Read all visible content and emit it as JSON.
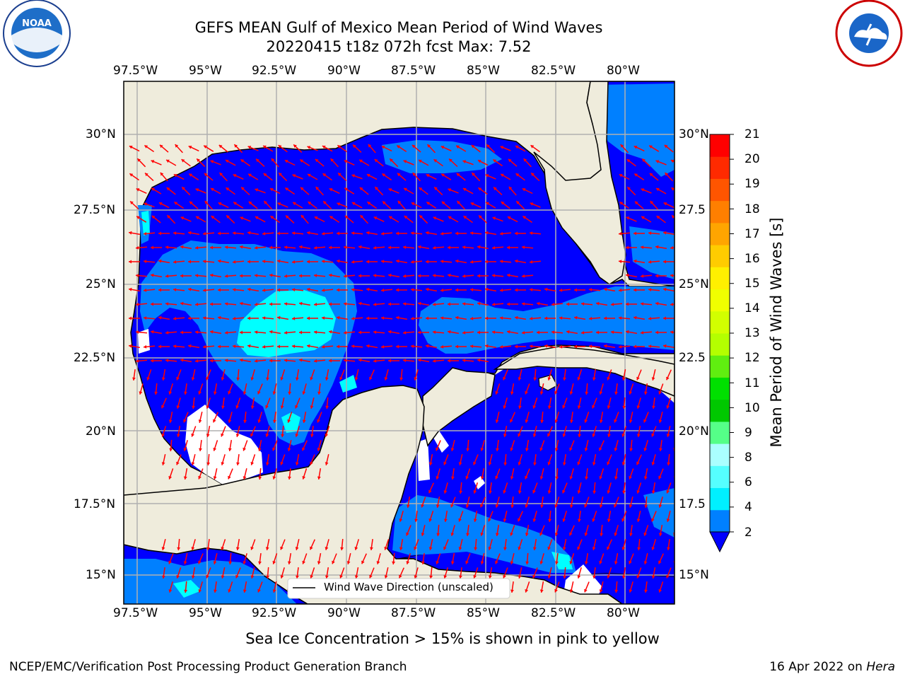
{
  "title": {
    "line1": "GEFS MEAN Gulf of Mexico Mean Period of Wind Waves",
    "line2": "20220415 t18z 072h fcst   Max: 7.52"
  },
  "axes": {
    "lon_labels": [
      "97.5°W",
      "95°W",
      "92.5°W",
      "90°W",
      "87.5°W",
      "85°W",
      "82.5°W",
      "80°W"
    ],
    "lat_labels_left": [
      "30°N",
      "27.5°N",
      "25°N",
      "22.5°N",
      "20°N",
      "17.5°N",
      "15°N"
    ],
    "lat_labels_right": [
      "30°N",
      "27.5",
      "25°N",
      "22.5",
      "20°N",
      "17.5",
      "15°N"
    ]
  },
  "colorbar": {
    "title": "Mean Period of Wind Waves [s]",
    "tick_labels": [
      "21",
      "20",
      "19",
      "18",
      "17",
      "16",
      "15",
      "14",
      "13",
      "12",
      "11",
      "10",
      "9",
      "8",
      "6",
      "4",
      "2"
    ],
    "colors": [
      "#ff0000",
      "#ff2a00",
      "#ff5500",
      "#ff7f00",
      "#ffa500",
      "#ffcc00",
      "#fff000",
      "#f0ff00",
      "#d2ff00",
      "#b4ff00",
      "#60ee10",
      "#00e000",
      "#00c800",
      "#55ff88",
      "#aaffff",
      "#55ffff",
      "#00f0ff",
      "#0080ff",
      "#0000ff"
    ]
  },
  "legend": {
    "label": "Wind Wave Direction (unscaled)"
  },
  "subtitle": "Sea Ice Concentration > 15% is shown in pink to yellow",
  "footer": {
    "left": "NCEP/EMC/Verification Post Processing Product Generation Branch",
    "right_date": "16 Apr 2022 on ",
    "right_host": "Hera"
  },
  "logos": {
    "noaa": "NOAA",
    "nws": "NATIONAL WEATHER SERVICE"
  },
  "map_colors": {
    "land": "#efecdc",
    "water_low": "#0000ff",
    "water_mid": "#0080ff",
    "water_high": "#00ffff",
    "arrow": "#ff0000"
  }
}
